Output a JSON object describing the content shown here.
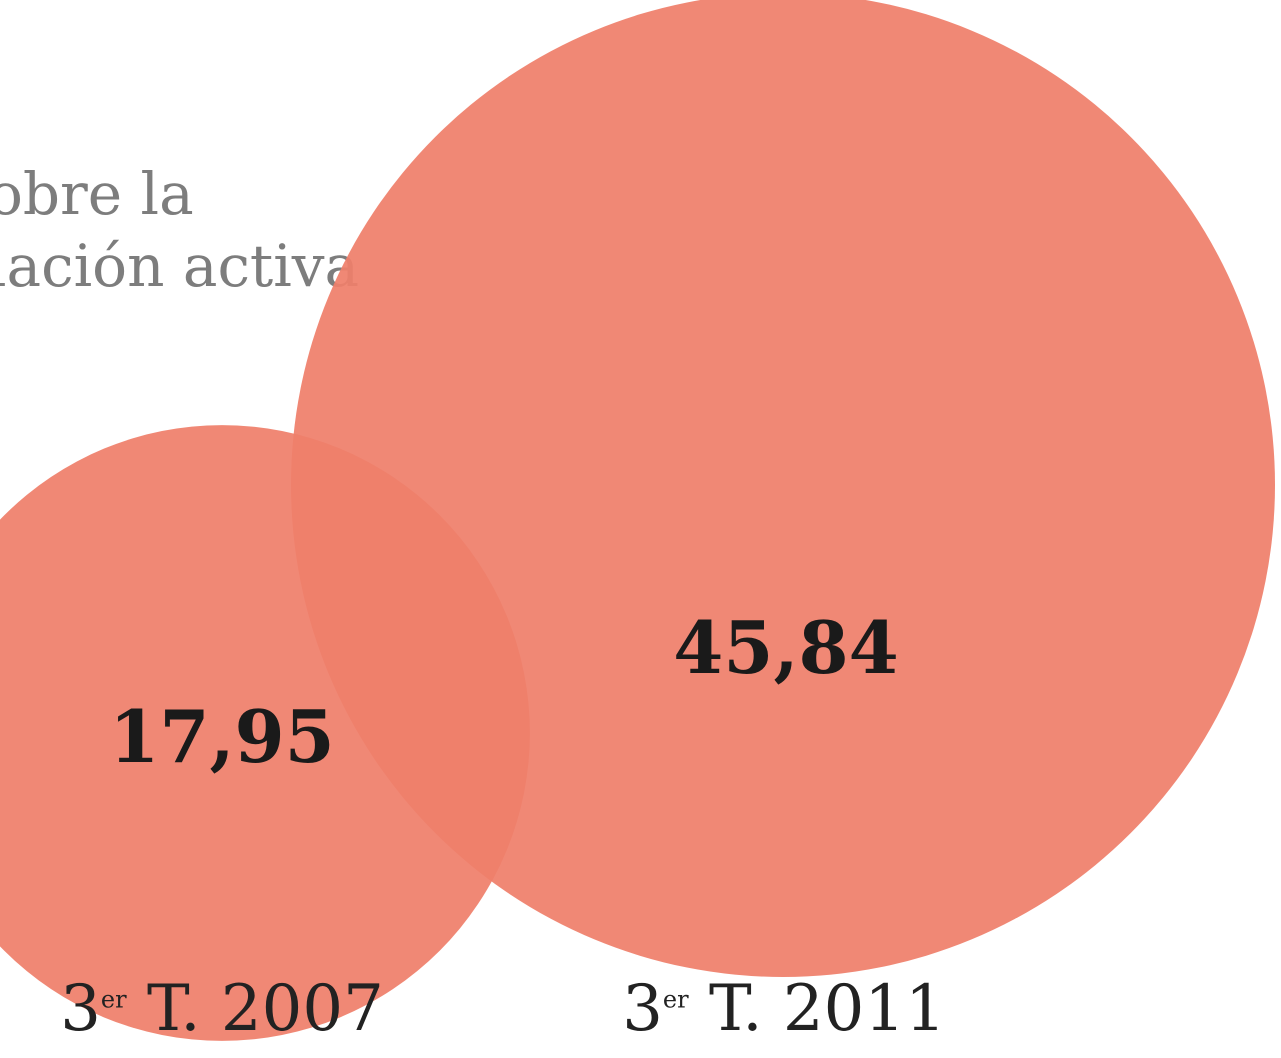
{
  "chart_data": {
    "type": "bubble",
    "subtitle_lines": [
      "obre la",
      "lación activa"
    ],
    "categories": [
      "3er T. 2007",
      "3er T. 2011"
    ],
    "values": [
      17.95,
      45.84
    ],
    "value_labels": [
      "17,95",
      "45,84"
    ],
    "bubble_color": "#ef7f6a",
    "label_color": "#1a1a1a"
  }
}
